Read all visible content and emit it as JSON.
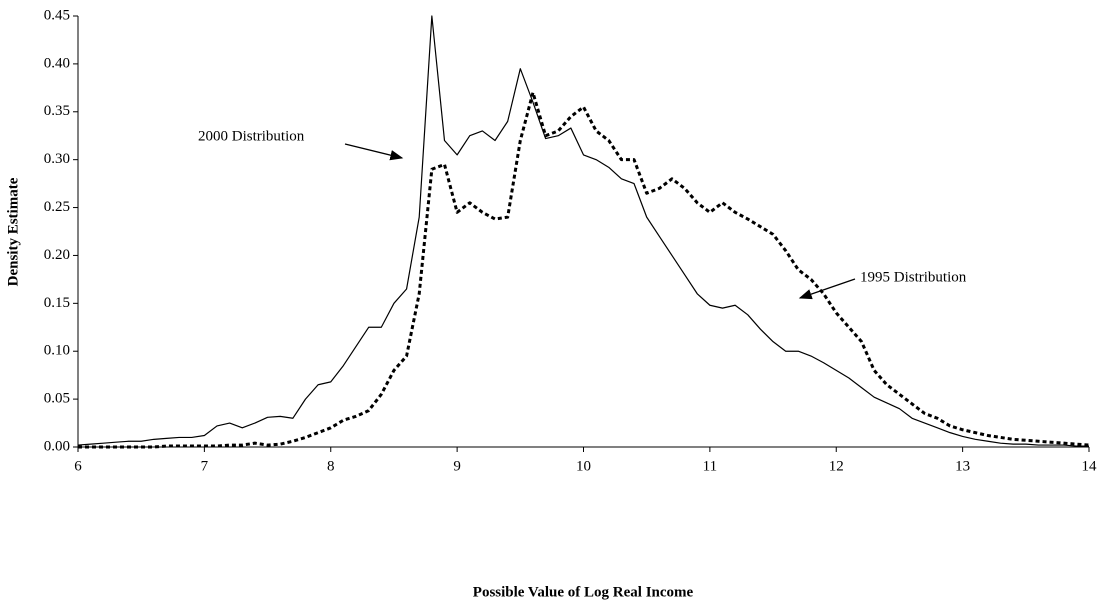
{
  "chart_data": {
    "type": "line",
    "x_label": "Possible Value of Log Real Income",
    "y_label": "Density Estimate",
    "annotations": [
      {
        "text": "2000 Distribution"
      },
      {
        "text": "1995 Distribution"
      }
    ],
    "x": [
      6.0,
      6.1,
      6.2,
      6.3,
      6.4,
      6.5,
      6.6,
      6.7,
      6.8,
      6.9,
      7.0,
      7.1,
      7.2,
      7.3,
      7.4,
      7.5,
      7.6,
      7.7,
      7.8,
      7.9,
      8.0,
      8.1,
      8.2,
      8.3,
      8.4,
      8.5,
      8.6,
      8.7,
      8.8,
      8.9,
      9.0,
      9.1,
      9.2,
      9.3,
      9.4,
      9.5,
      9.6,
      9.7,
      9.8,
      9.9,
      10.0,
      10.1,
      10.2,
      10.3,
      10.4,
      10.5,
      10.6,
      10.7,
      10.8,
      10.9,
      11.0,
      11.1,
      11.2,
      11.3,
      11.4,
      11.5,
      11.6,
      11.7,
      11.8,
      11.9,
      12.0,
      12.1,
      12.2,
      12.3,
      12.4,
      12.5,
      12.6,
      12.7,
      12.8,
      12.9,
      13.0,
      13.1,
      13.2,
      13.3,
      13.4,
      13.5,
      13.6,
      13.7,
      13.8,
      13.9,
      14.0
    ],
    "series": [
      {
        "color": "#000000",
        "dashed": false,
        "values": [
          0.002,
          0.003,
          0.004,
          0.005,
          0.006,
          0.006,
          0.008,
          0.009,
          0.01,
          0.01,
          0.012,
          0.022,
          0.025,
          0.02,
          0.025,
          0.031,
          0.032,
          0.03,
          0.05,
          0.065,
          0.068,
          0.085,
          0.105,
          0.125,
          0.125,
          0.15,
          0.165,
          0.24,
          0.45,
          0.32,
          0.305,
          0.325,
          0.33,
          0.32,
          0.34,
          0.395,
          0.36,
          0.322,
          0.325,
          0.333,
          0.305,
          0.3,
          0.292,
          0.28,
          0.275,
          0.24,
          0.22,
          0.2,
          0.18,
          0.16,
          0.148,
          0.145,
          0.148,
          0.138,
          0.123,
          0.11,
          0.1,
          0.1,
          0.095,
          0.088,
          0.08,
          0.072,
          0.062,
          0.052,
          0.046,
          0.04,
          0.03,
          0.025,
          0.02,
          0.015,
          0.011,
          0.008,
          0.006,
          0.004,
          0.003,
          0.003,
          0.002,
          0.002,
          0.002,
          0.001,
          0.001
        ]
      },
      {
        "color": "#000000",
        "dashed": true,
        "values": [
          0.0,
          0.0,
          0.0,
          0.0,
          0.0,
          0.0,
          0.0,
          0.001,
          0.001,
          0.001,
          0.001,
          0.001,
          0.002,
          0.002,
          0.004,
          0.002,
          0.003,
          0.006,
          0.01,
          0.015,
          0.02,
          0.028,
          0.032,
          0.038,
          0.055,
          0.08,
          0.095,
          0.16,
          0.29,
          0.295,
          0.245,
          0.255,
          0.245,
          0.238,
          0.24,
          0.32,
          0.37,
          0.325,
          0.33,
          0.345,
          0.355,
          0.33,
          0.32,
          0.3,
          0.3,
          0.265,
          0.27,
          0.28,
          0.27,
          0.255,
          0.245,
          0.255,
          0.245,
          0.238,
          0.23,
          0.222,
          0.205,
          0.185,
          0.175,
          0.16,
          0.14,
          0.125,
          0.11,
          0.08,
          0.065,
          0.055,
          0.045,
          0.035,
          0.03,
          0.022,
          0.018,
          0.015,
          0.012,
          0.01,
          0.008,
          0.007,
          0.006,
          0.005,
          0.004,
          0.003,
          0.002
        ]
      }
    ],
    "xlim": [
      6,
      14
    ],
    "xticks": [
      6,
      7,
      8,
      9,
      10,
      11,
      12,
      13,
      14
    ],
    "ylim": [
      0,
      0.45
    ],
    "yticks": [
      {
        "value": 0,
        "label": "0.00"
      },
      0.05,
      {
        "value": 0.1,
        "label": "0.10"
      },
      0.15,
      {
        "value": 0.2,
        "label": "0.20"
      },
      0.25,
      {
        "value": 0.3,
        "label": "0.30"
      },
      0.35,
      {
        "value": 0.4,
        "label": "0.40"
      },
      0.45
    ],
    "grid": false
  }
}
